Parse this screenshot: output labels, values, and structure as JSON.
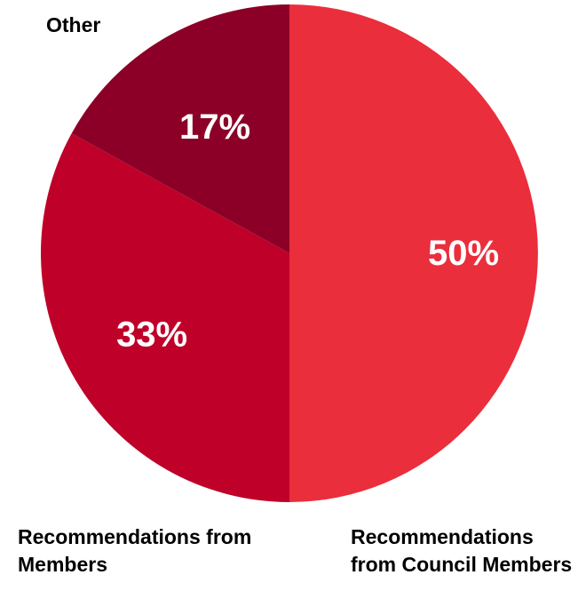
{
  "chart_data": {
    "type": "pie",
    "categories": [
      "Recommendations from Council Members",
      "Recommendations from Members",
      "Other"
    ],
    "values": [
      50,
      33,
      17
    ],
    "data_labels": [
      "50%",
      "33%",
      "17%"
    ],
    "colors": [
      "#ea2e3c",
      "#bf0029",
      "#8c0027"
    ],
    "start_angle": "12 o'clock",
    "direction": "clockwise"
  },
  "legend": {
    "other": "Other",
    "members": "Recommendations from Members",
    "council": "Recommendations from Council Members"
  }
}
